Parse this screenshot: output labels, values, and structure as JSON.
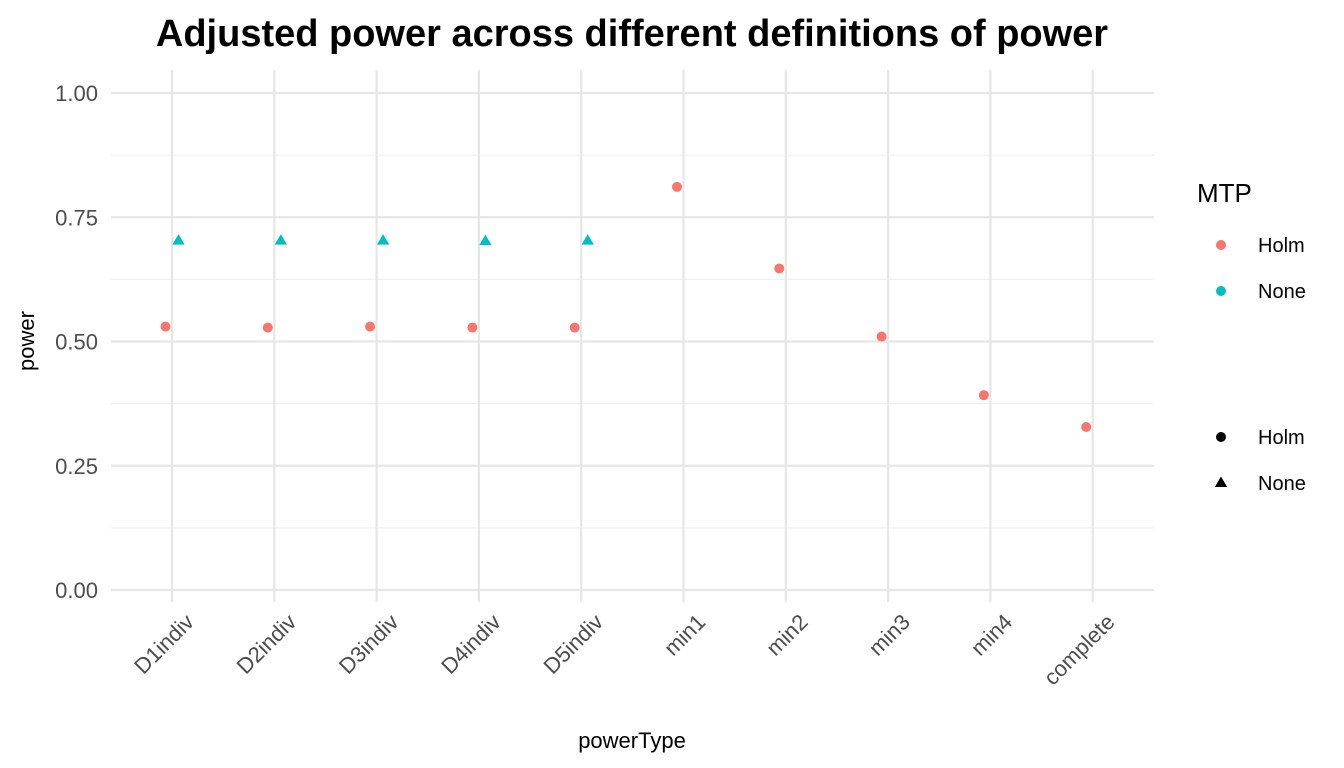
{
  "chart_data": {
    "type": "scatter",
    "title": "Adjusted power across different definitions of power",
    "xlabel": "powerType",
    "ylabel": "power",
    "categories": [
      "D1indiv",
      "D2indiv",
      "D3indiv",
      "D4indiv",
      "D5indiv",
      "min1",
      "min2",
      "min3",
      "min4",
      "complete"
    ],
    "ylim": [
      0,
      1
    ],
    "yticks": [
      0,
      0.25,
      0.5,
      0.75,
      1.0
    ],
    "ytick_labels": [
      "0.00",
      "0.25",
      "0.50",
      "0.75",
      "1.00"
    ],
    "grid": true,
    "series": [
      {
        "name": "Holm",
        "color": "#F8766D",
        "shape": "circle",
        "values": [
          0.53,
          0.528,
          0.53,
          0.528,
          0.528,
          0.811,
          0.647,
          0.51,
          0.392,
          0.328
        ]
      },
      {
        "name": "None",
        "color": "#00BFC4",
        "shape": "triangle",
        "values": [
          0.703,
          0.703,
          0.703,
          0.702,
          0.703,
          null,
          null,
          null,
          null,
          null
        ]
      }
    ],
    "legend": {
      "placement": "right",
      "color_title": "MTP",
      "color_items": [
        {
          "label": "Holm",
          "color": "#F8766D"
        },
        {
          "label": "None",
          "color": "#00BFC4"
        }
      ],
      "shape_items": [
        {
          "label": "Holm",
          "shape": "circle"
        },
        {
          "label": "None",
          "shape": "triangle"
        }
      ]
    }
  }
}
